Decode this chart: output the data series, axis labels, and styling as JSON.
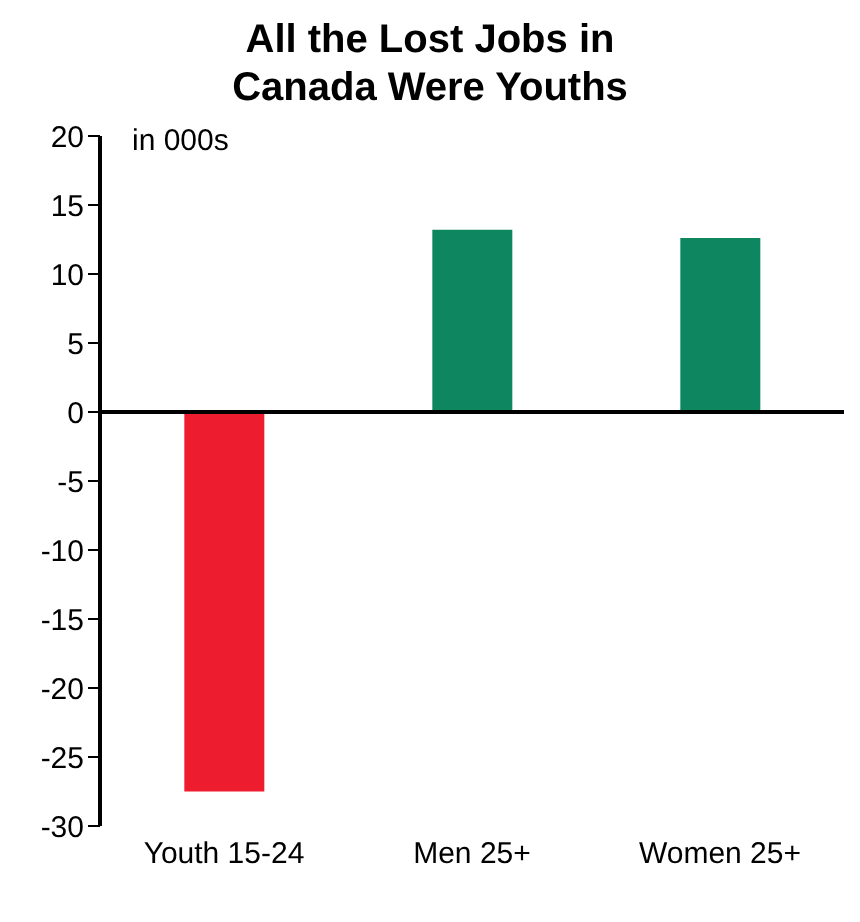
{
  "chart_data": {
    "type": "bar",
    "title": "All the Lost Jobs in Canada Were Youths",
    "ylabel": "in 000s",
    "categories": [
      "Youth 15-24",
      "Men 25+",
      "Women 25+"
    ],
    "values": [
      -27.5,
      13.2,
      12.6
    ],
    "colors": [
      "#ed1c2e",
      "#0e8760",
      "#0e8760"
    ],
    "ylim": [
      -30,
      20
    ],
    "yticks": [
      -30,
      -25,
      -20,
      -15,
      -10,
      -5,
      0,
      5,
      10,
      15,
      20
    ]
  }
}
